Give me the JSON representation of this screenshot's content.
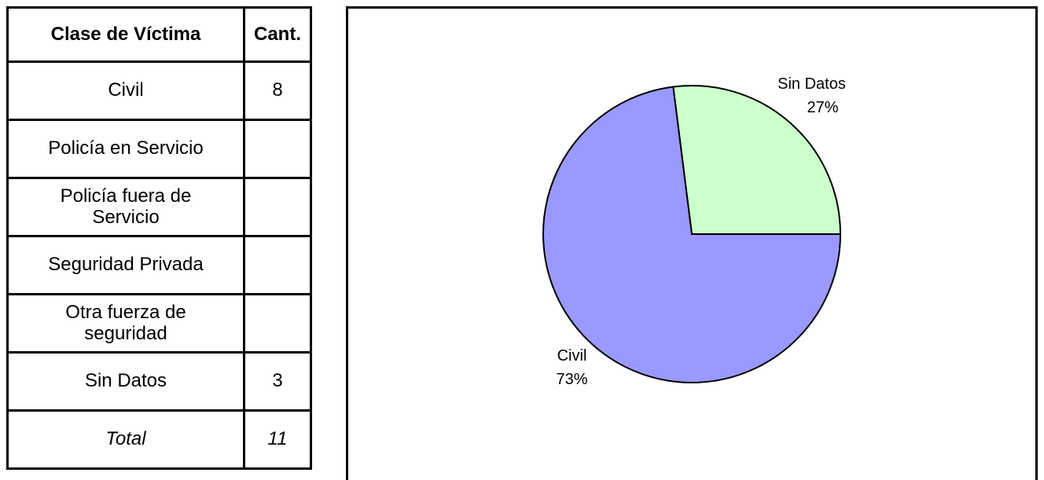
{
  "table": {
    "header": [
      "Clase de Víctima",
      "Cant."
    ],
    "rows": [
      [
        "Civil",
        8
      ],
      [
        "Policía en Servicio"
      ],
      [
        "Policía fuera de Servicio"
      ],
      [
        "Seguridad Privada"
      ],
      [
        "Otra fuerza de seguridad"
      ],
      [
        "Sin Datos",
        3
      ]
    ],
    "total": [
      "Total",
      11
    ]
  },
  "chart_data": {
    "type": "pie",
    "categories": [
      "Sin Datos",
      "Civil"
    ],
    "values": [
      27,
      73
    ],
    "value_labels": [
      "27%",
      "73%"
    ],
    "colors": [
      "#ccffcc",
      "#9999ff"
    ]
  }
}
